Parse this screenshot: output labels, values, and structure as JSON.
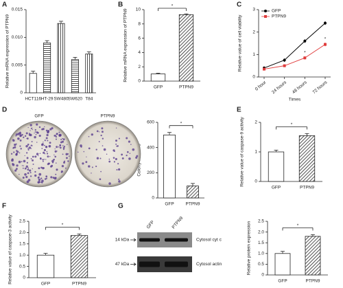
{
  "chart_data": [
    {
      "panel": "A",
      "type": "bar",
      "ylabel": "Relative mRNA expression of PTPN9",
      "categories": [
        "HCT116",
        "HT-29",
        "SW480",
        "SW620",
        "T84"
      ],
      "values": [
        0.0035,
        0.009,
        0.0125,
        0.006,
        0.007
      ],
      "errors": [
        0.0004,
        0.0004,
        0.0004,
        0.0004,
        0.0004
      ],
      "patterns": [
        "none",
        "horizontal",
        "vertical",
        "horizontal",
        "vertical"
      ],
      "ylim": [
        0,
        0.015
      ],
      "yticks": [
        0,
        0.005,
        {
          "value": 0.01,
          "label": "0.010"
        },
        0.015
      ]
    },
    {
      "panel": "B",
      "type": "bar",
      "ylabel": "Relative mRNA expression of PTPN9",
      "categories": [
        "GFP",
        "PTPN9"
      ],
      "values": [
        1.0,
        9.3
      ],
      "errors": [
        0.1,
        0.1
      ],
      "patterns": [
        "none",
        "diagonal"
      ],
      "ylim": [
        0,
        10
      ],
      "yticks": [
        0,
        2,
        4,
        6,
        8,
        10
      ],
      "significance": "*"
    },
    {
      "panel": "C",
      "type": "line",
      "ylabel": "Relative value of cell viability",
      "xlabel": "Times",
      "categories": [
        "0 hour",
        "24 hours",
        "48 hours",
        "72 hours"
      ],
      "series": [
        {
          "name": "GFP",
          "color": "#000000",
          "values": [
            0.4,
            0.75,
            1.6,
            2.4
          ],
          "errors": [
            0.07,
            0.08,
            0.08,
            0.08
          ]
        },
        {
          "name": "PTPN9",
          "color": "#e03c3c",
          "values": [
            0.35,
            0.5,
            0.85,
            1.45
          ],
          "errors": [
            0.05,
            0.06,
            0.07,
            0.08
          ],
          "point_labels": [
            null,
            null,
            "*",
            "*"
          ]
        }
      ],
      "ylim": [
        0,
        3
      ],
      "yticks": [
        0,
        1,
        2,
        3
      ],
      "legend": "upper-left"
    },
    {
      "panel": "D",
      "type": "bar",
      "image_labels": [
        "GFP",
        "PTPN9"
      ],
      "ylabel": "Colony numbers",
      "categories": [
        "GFP",
        "PTPN9"
      ],
      "values": [
        500,
        95
      ],
      "errors": [
        20,
        20
      ],
      "patterns": [
        "none",
        "diagonal"
      ],
      "ylim": [
        0,
        600
      ],
      "yticks": [
        0,
        200,
        400,
        600
      ],
      "significance": "*"
    },
    {
      "panel": "E",
      "type": "bar",
      "ylabel": "Relative value of caspase-9 activity",
      "categories": [
        "GFP",
        "PTPN9"
      ],
      "values": [
        1.0,
        1.55
      ],
      "errors": [
        0.06,
        0.07
      ],
      "patterns": [
        "none",
        "diagonal"
      ],
      "ylim": [
        0,
        2
      ],
      "yticks": [
        0,
        1,
        2
      ],
      "significance": "*"
    },
    {
      "panel": "F",
      "type": "bar",
      "ylabel": "Relative value of caspase-3 activity",
      "categories": [
        "GFP",
        "PTPN9"
      ],
      "values": [
        1.0,
        1.87
      ],
      "errors": [
        0.08,
        0.07
      ],
      "patterns": [
        "none",
        "diagonal"
      ],
      "ylim": [
        0,
        2.5
      ],
      "yticks": [
        0,
        0.5,
        {
          "value": 1,
          "label": "1.0"
        },
        1.5,
        {
          "value": 2,
          "label": "2.0"
        },
        2.5
      ],
      "significance": "*"
    },
    {
      "panel": "G",
      "type": "bar",
      "lane_labels": [
        "GFP",
        "PTPN9"
      ],
      "bands": [
        {
          "size": "14 kDa",
          "label": "Cytosol cyt c"
        },
        {
          "size": "47 kDa",
          "label": "Cytosol actin"
        }
      ],
      "ylabel": "Relative protein expression",
      "categories": [
        "GFP",
        "PTPN9"
      ],
      "values": [
        1.0,
        1.8
      ],
      "errors": [
        0.1,
        0.08
      ],
      "patterns": [
        "none",
        "diagonal"
      ],
      "ylim": [
        0,
        2.5
      ],
      "yticks": [
        0,
        0.5,
        {
          "value": 1,
          "label": "1.0"
        },
        1.5,
        {
          "value": 2,
          "label": "2.0"
        },
        2.5
      ],
      "significance": "*"
    }
  ]
}
